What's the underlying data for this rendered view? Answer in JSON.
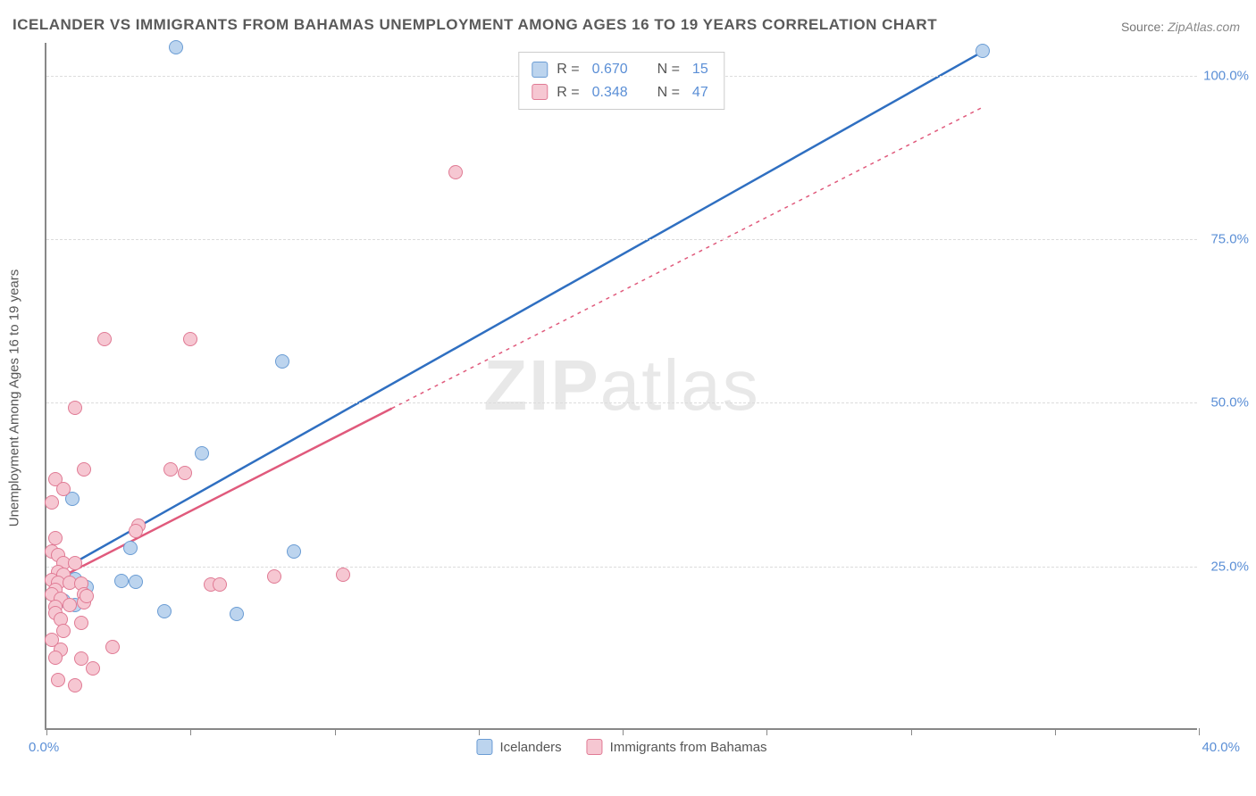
{
  "title": "ICELANDER VS IMMIGRANTS FROM BAHAMAS UNEMPLOYMENT AMONG AGES 16 TO 19 YEARS CORRELATION CHART",
  "source_label": "Source:",
  "source_value": "ZipAtlas.com",
  "ylabel": "Unemployment Among Ages 16 to 19 years",
  "watermark_a": "ZIP",
  "watermark_b": "atlas",
  "chart": {
    "type": "scatter",
    "xlim": [
      0,
      40
    ],
    "ylim": [
      0,
      105
    ],
    "x_ticks": [
      0,
      5,
      10,
      15,
      20,
      25,
      30,
      35,
      40
    ],
    "x_tick_label_first": "0.0%",
    "x_tick_label_last": "40.0%",
    "y_gridlines": [
      25,
      50,
      75,
      100
    ],
    "y_tick_labels": {
      "25": "25.0%",
      "50": "50.0%",
      "75": "75.0%",
      "100": "100.0%"
    },
    "background_color": "#ffffff",
    "grid_color": "#dcdcdc",
    "axis_color": "#888888",
    "series": [
      {
        "name": "Icelanders",
        "fill": "#bcd4ee",
        "stroke": "#6a9cd4",
        "line_color": "#2f6fc1",
        "line_width": 2.5,
        "line_dash": "none",
        "marker_radius": 8,
        "R": "0.670",
        "N": "15",
        "points": [
          [
            4.5,
            104
          ],
          [
            32.5,
            103.5
          ],
          [
            8.2,
            56
          ],
          [
            5.4,
            42
          ],
          [
            0.9,
            35
          ],
          [
            2.9,
            27.5
          ],
          [
            8.6,
            27
          ],
          [
            1.0,
            22.8
          ],
          [
            2.6,
            22.5
          ],
          [
            3.1,
            22.3
          ],
          [
            1.4,
            21.5
          ],
          [
            0.6,
            19.5
          ],
          [
            4.1,
            17.8
          ],
          [
            6.6,
            17.5
          ],
          [
            1.0,
            18.8
          ]
        ],
        "trend": {
          "x1": 0.2,
          "y1": 23.5,
          "x2": 32.5,
          "y2": 103.5
        }
      },
      {
        "name": "Immigrants from Bahamas",
        "fill": "#f6c7d2",
        "stroke": "#e07a94",
        "line_color": "#e05a7c",
        "line_width": 2.5,
        "line_dash": "4,5",
        "marker_radius": 8,
        "R": "0.348",
        "N": "47",
        "points": [
          [
            14.2,
            85
          ],
          [
            2.0,
            59.5
          ],
          [
            5.0,
            59.5
          ],
          [
            1.0,
            49
          ],
          [
            1.3,
            39.5
          ],
          [
            4.3,
            39.5
          ],
          [
            4.8,
            39
          ],
          [
            0.3,
            38
          ],
          [
            0.6,
            36.5
          ],
          [
            0.2,
            34.5
          ],
          [
            3.2,
            31
          ],
          [
            0.3,
            29
          ],
          [
            3.1,
            30.2
          ],
          [
            0.2,
            27
          ],
          [
            0.4,
            26.5
          ],
          [
            0.6,
            25.2
          ],
          [
            1.0,
            25.2
          ],
          [
            0.4,
            23.8
          ],
          [
            0.6,
            23.5
          ],
          [
            7.9,
            23.2
          ],
          [
            10.3,
            23.5
          ],
          [
            0.2,
            22.6
          ],
          [
            0.4,
            22.2
          ],
          [
            0.8,
            22.2
          ],
          [
            1.2,
            22.1
          ],
          [
            5.7,
            22
          ],
          [
            6.0,
            22
          ],
          [
            0.3,
            21.2
          ],
          [
            0.2,
            20.5
          ],
          [
            1.3,
            20.5
          ],
          [
            0.5,
            19.8
          ],
          [
            1.3,
            19.2
          ],
          [
            0.3,
            18.5
          ],
          [
            0.8,
            18.8
          ],
          [
            0.3,
            17.6
          ],
          [
            0.5,
            16.6
          ],
          [
            1.2,
            16.1
          ],
          [
            0.6,
            14.8
          ],
          [
            0.2,
            13.5
          ],
          [
            2.3,
            12.4
          ],
          [
            0.5,
            12
          ],
          [
            0.3,
            10.8
          ],
          [
            1.2,
            10.6
          ],
          [
            1.6,
            9.2
          ],
          [
            0.4,
            7.4
          ],
          [
            1.0,
            6.6
          ],
          [
            1.4,
            20.2
          ]
        ],
        "trend": {
          "x1": 0.2,
          "y1": 22.5,
          "x2": 12.0,
          "y2": 49
        },
        "trend_ext": {
          "x1": 12.0,
          "y1": 49,
          "x2": 32.5,
          "y2": 95
        }
      }
    ]
  },
  "legend_top_prefix_R": "R  = ",
  "legend_top_prefix_N": "N  = ",
  "legend_bottom_labels": [
    "Icelanders",
    "Immigrants from Bahamas"
  ]
}
